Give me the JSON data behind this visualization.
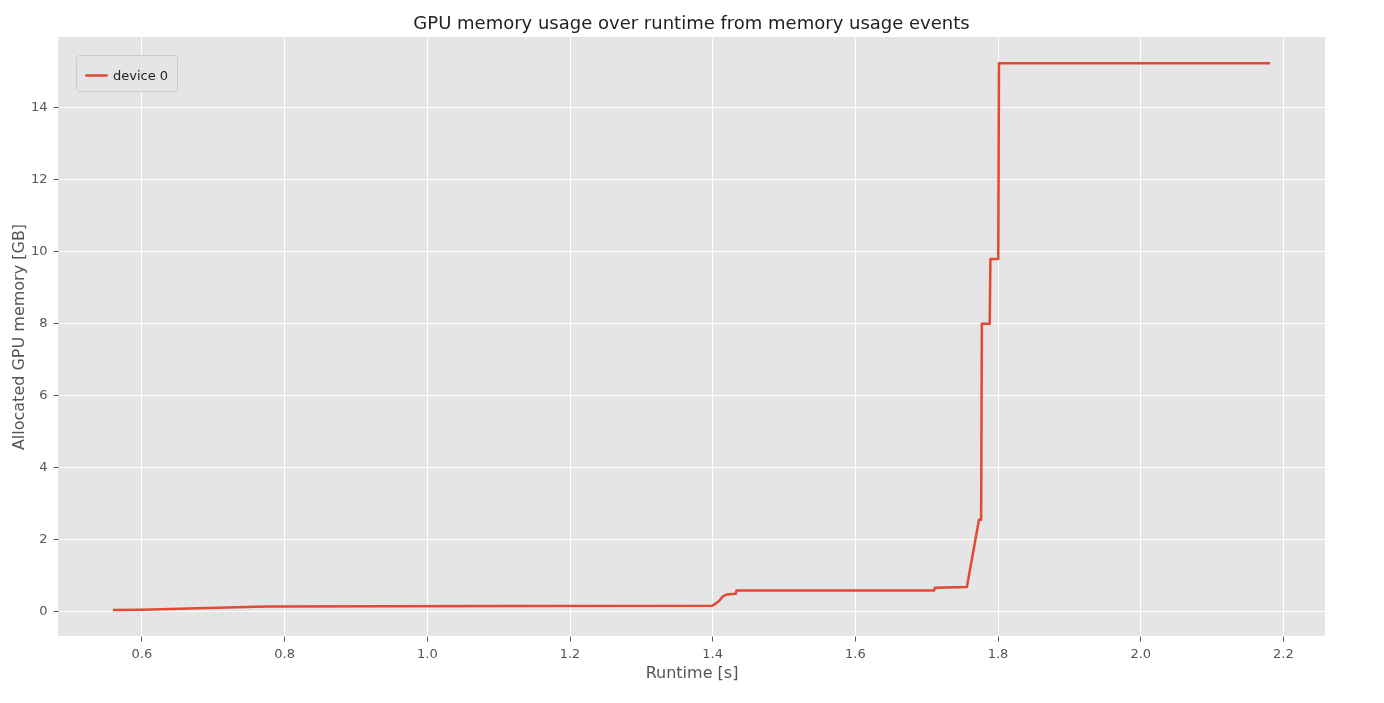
{
  "chart_data": {
    "type": "line",
    "title": "GPU memory usage over runtime from memory usage events",
    "xlabel": "Runtime [s]",
    "ylabel": "Allocated GPU memory [GB]",
    "x": [
      0.56,
      0.6,
      0.78,
      1.4,
      1.405,
      1.41,
      1.415,
      1.42,
      1.433,
      1.434,
      1.711,
      1.712,
      1.757,
      1.774,
      1.777,
      1.778,
      1.789,
      1.79,
      1.801,
      1.802,
      2.182
    ],
    "series": [
      {
        "name": "device 0",
        "color": "#e24a33",
        "values": [
          0.02,
          0.03,
          0.12,
          0.14,
          0.2,
          0.28,
          0.4,
          0.45,
          0.47,
          0.56,
          0.56,
          0.64,
          0.66,
          2.53,
          2.53,
          7.97,
          7.97,
          9.77,
          9.77,
          15.2,
          15.2
        ]
      }
    ],
    "xlim": [
      0.483,
      2.259
    ],
    "ylim": [
      -0.7,
      15.93
    ],
    "xticks": [
      {
        "value": 0.6,
        "label": "0.6"
      },
      {
        "value": 0.8,
        "label": "0.8"
      },
      {
        "value": 1.0,
        "label": "1.0"
      },
      {
        "value": 1.2,
        "label": "1.2"
      },
      {
        "value": 1.4,
        "label": "1.4"
      },
      {
        "value": 1.6,
        "label": "1.6"
      },
      {
        "value": 1.8,
        "label": "1.8"
      },
      {
        "value": 2.0,
        "label": "2.0"
      },
      {
        "value": 2.2,
        "label": "2.2"
      }
    ],
    "yticks": [
      0,
      2,
      4,
      6,
      8,
      10,
      12,
      14
    ],
    "grid": true,
    "legend": "top left"
  }
}
